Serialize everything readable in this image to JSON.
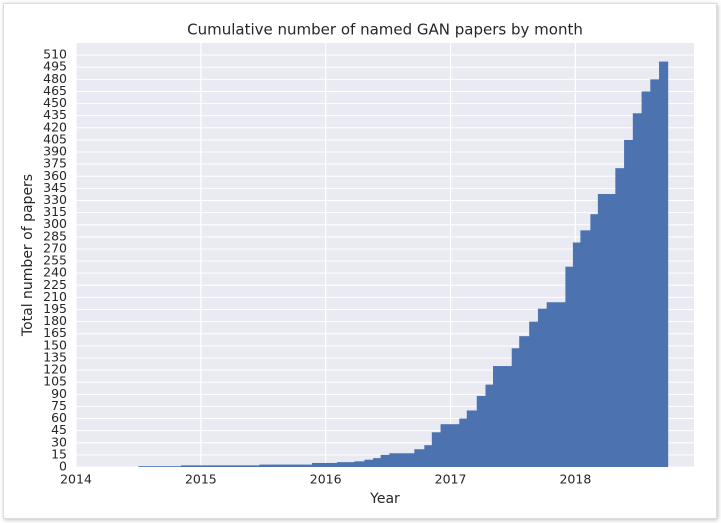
{
  "chart_data": {
    "type": "histogram",
    "title": "Cumulative number of named GAN papers by month",
    "xlabel": "Year",
    "ylabel": "Total number of papers",
    "color": "#4c72b0",
    "background": "#eaeaf2",
    "grid": true,
    "bins": [
      2014.5,
      2014.84,
      2015.47,
      2015.89,
      2016.09,
      2016.23,
      2016.31,
      2016.38,
      2016.44,
      2016.51,
      2016.71,
      2016.79,
      2016.85,
      2016.92,
      2017.07,
      2017.13,
      2017.21,
      2017.28,
      2017.34,
      2017.49,
      2017.55,
      2017.63,
      2017.7,
      2017.77,
      2017.92,
      2017.98,
      2018.04,
      2018.12,
      2018.18,
      2018.32,
      2018.39,
      2018.46,
      2018.53,
      2018.6,
      2018.67,
      2018.74
    ],
    "values": [
      1,
      2,
      3,
      5,
      6,
      7,
      9,
      11,
      15,
      17,
      22,
      27,
      43,
      53,
      60,
      70,
      88,
      102,
      125,
      147,
      162,
      180,
      196,
      204,
      248,
      278,
      293,
      313,
      338,
      370,
      405,
      438,
      465,
      480,
      502
    ],
    "xlim": [
      2014,
      2018.95
    ],
    "xticks": [
      2014,
      2015,
      2016,
      2017,
      2018
    ],
    "ylim": [
      0,
      525
    ],
    "yticks": [
      0,
      15,
      30,
      45,
      60,
      75,
      90,
      105,
      120,
      135,
      150,
      165,
      180,
      195,
      210,
      225,
      240,
      255,
      270,
      285,
      300,
      315,
      330,
      345,
      360,
      375,
      390,
      405,
      420,
      435,
      450,
      465,
      480,
      495,
      510
    ]
  }
}
